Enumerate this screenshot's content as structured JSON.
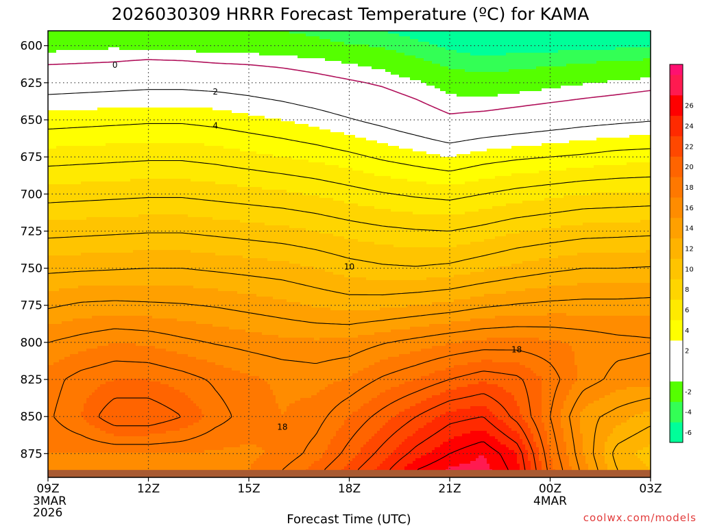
{
  "chart_data": {
    "type": "heatmap",
    "title": "2026030309 HRRR Forecast Temperature (ºC) for KAMA",
    "xlabel": "Forecast Time (UTC)",
    "ylabel": "",
    "x_ticks": [
      {
        "hour": 0,
        "label": "09Z",
        "date": "3MAR",
        "year": "2026"
      },
      {
        "hour": 3,
        "label": "12Z"
      },
      {
        "hour": 6,
        "label": "15Z"
      },
      {
        "hour": 9,
        "label": "18Z"
      },
      {
        "hour": 12,
        "label": "21Z"
      },
      {
        "hour": 15,
        "label": "00Z",
        "date": "4MAR"
      },
      {
        "hour": 18,
        "label": "03Z"
      }
    ],
    "xlim": [
      0,
      18
    ],
    "y_ticks": [
      600,
      625,
      650,
      675,
      700,
      725,
      750,
      775,
      800,
      825,
      850,
      875
    ],
    "ylim": [
      590,
      891
    ],
    "y_reversed": true,
    "ground_pressure": 886,
    "colorbar": {
      "min": -7,
      "step": 1,
      "labels": [
        26,
        24,
        22,
        20,
        18,
        16,
        14,
        12,
        10,
        8,
        6,
        4,
        2,
        -2,
        -4,
        -6
      ],
      "colors": [
        "#00ff99",
        "#00ff99",
        "#33ff55",
        "#33ff55",
        "#55ff00",
        "#55ff00",
        "#ffffff",
        "#ffffff",
        "#ffffff",
        "#ffffff",
        "#ffff00",
        "#ffff00",
        "#ffea00",
        "#ffea00",
        "#ffd500",
        "#ffd500",
        "#ffc400",
        "#ffc400",
        "#ffb300",
        "#ffb300",
        "#ffa000",
        "#ffa000",
        "#ff8c00",
        "#ff8c00",
        "#ff7800",
        "#ff7800",
        "#ff6400",
        "#ff6400",
        "#ff4800",
        "#ff4800",
        "#ff2a00",
        "#ff2a00",
        "#ff0000",
        "#ff0000",
        "#ff1a50",
        "#ff1a50",
        "#ff1070"
      ]
    },
    "zero_color": "#b0105a",
    "ground_color": "#a85a32",
    "sounding_hours": [
      0,
      1,
      2,
      3,
      4,
      5,
      6,
      7,
      8,
      9,
      10,
      11,
      12,
      13,
      14,
      15,
      16,
      17,
      18
    ],
    "pressure_levels": [
      590,
      600,
      610,
      625,
      650,
      675,
      700,
      725,
      750,
      775,
      800,
      825,
      850,
      875,
      886
    ],
    "temperatures": [
      [
        -2.4,
        -2.2,
        -2.1,
        -2.3,
        -2.4,
        -2.6,
        -2.7,
        -3.0,
        -3.5,
        -4.5,
        -5.0,
        -6.0,
        -7.0,
        -7.2,
        -7.0,
        -6.8,
        -6.5,
        -6.3,
        -6.0
      ],
      [
        -1.5,
        -1.3,
        -1.2,
        -1.4,
        -1.5,
        -1.7,
        -1.8,
        -2.0,
        -2.2,
        -2.8,
        -3.2,
        -4.3,
        -5.5,
        -6.5,
        -6.2,
        -6.0,
        -5.7,
        -5.5,
        -5.2
      ],
      [
        -0.3,
        -0.2,
        -0.1,
        0.1,
        0.0,
        -0.2,
        -0.3,
        -0.5,
        -0.8,
        -1.2,
        -1.6,
        -2.6,
        -3.8,
        -4.3,
        -3.9,
        -3.6,
        -3.3,
        -3.0,
        -2.8
      ],
      [
        1.3,
        1.4,
        1.5,
        1.6,
        1.6,
        1.5,
        1.3,
        1.0,
        0.6,
        0.2,
        -0.2,
        -0.8,
        -1.6,
        -2.0,
        -1.7,
        -1.4,
        -1.1,
        -0.8,
        -0.5
      ],
      [
        3.5,
        3.6,
        3.7,
        3.8,
        3.8,
        3.6,
        3.3,
        3.0,
        2.6,
        2.1,
        1.6,
        1.0,
        0.3,
        0.6,
        0.9,
        1.2,
        1.5,
        1.7,
        1.9
      ],
      [
        5.5,
        5.6,
        5.7,
        5.8,
        5.8,
        5.6,
        5.3,
        5.0,
        4.7,
        4.3,
        3.8,
        3.4,
        3.0,
        3.5,
        3.8,
        4.0,
        4.2,
        4.5,
        4.6
      ],
      [
        7.5,
        7.6,
        7.7,
        7.8,
        7.8,
        7.6,
        7.4,
        7.2,
        6.9,
        6.5,
        6.1,
        5.8,
        5.6,
        6.0,
        6.4,
        6.7,
        7.0,
        7.1,
        7.2
      ],
      [
        9.6,
        9.7,
        9.8,
        9.9,
        9.9,
        9.7,
        9.5,
        9.3,
        9.0,
        8.6,
        8.3,
        8.1,
        8.0,
        8.4,
        8.9,
        9.2,
        9.5,
        9.6,
        9.7
      ],
      [
        11.7,
        11.8,
        11.9,
        12.0,
        12.0,
        11.8,
        11.6,
        11.4,
        11.0,
        10.5,
        10.2,
        10.1,
        10.3,
        10.8,
        11.3,
        11.7,
        12.0,
        12.0,
        12.1
      ],
      [
        13.8,
        14.2,
        14.3,
        14.2,
        14.1,
        13.9,
        13.6,
        13.3,
        12.9,
        12.6,
        12.7,
        13.0,
        13.3,
        13.8,
        14.1,
        14.3,
        14.4,
        14.4,
        14.5
      ],
      [
        16.0,
        16.5,
        17.0,
        16.8,
        16.3,
        15.9,
        15.6,
        15.3,
        15.2,
        15.3,
        15.9,
        16.4,
        16.9,
        17.3,
        17.4,
        17.2,
        16.8,
        16.4,
        16.2
      ],
      [
        17.5,
        18.5,
        19.0,
        19.0,
        18.5,
        17.8,
        17.2,
        16.8,
        16.6,
        17.1,
        18.2,
        19.0,
        20.0,
        20.8,
        20.3,
        18.6,
        16.6,
        15.6,
        15.5
      ],
      [
        17.8,
        19.0,
        21.0,
        21.0,
        20.0,
        18.5,
        17.5,
        17.0,
        17.5,
        19.0,
        20.5,
        22.0,
        23.5,
        24.0,
        21.5,
        18.0,
        14.5,
        13.5,
        12.5
      ],
      [
        17.0,
        17.0,
        17.0,
        17.0,
        17.0,
        16.8,
        16.8,
        17.2,
        18.5,
        20.5,
        22.5,
        24.5,
        26.0,
        27.0,
        25.0,
        19.0,
        15.0,
        11.5,
        10.5
      ],
      [
        16.5,
        16.0,
        16.0,
        16.0,
        16.2,
        16.5,
        17.0,
        18.0,
        19.5,
        21.5,
        23.5,
        26.0,
        27.2,
        27.5,
        25.5,
        19.5,
        15.5,
        12.0,
        11.0
      ]
    ],
    "contour_levels": [
      0,
      2,
      4,
      6,
      8,
      10,
      12,
      14,
      16,
      18,
      20,
      22,
      24,
      26
    ],
    "contour_labels": [
      {
        "value": "0",
        "hour": 2.0,
        "p": 613
      },
      {
        "value": "2",
        "hour": 5.0,
        "p": 631
      },
      {
        "value": "4",
        "hour": 5.0,
        "p": 654
      },
      {
        "value": "10",
        "hour": 9.0,
        "p": 749
      },
      {
        "value": "18",
        "hour": 14.0,
        "p": 805
      },
      {
        "value": "18",
        "hour": 7.0,
        "p": 857
      }
    ],
    "credit": "coolwx.com/models"
  }
}
